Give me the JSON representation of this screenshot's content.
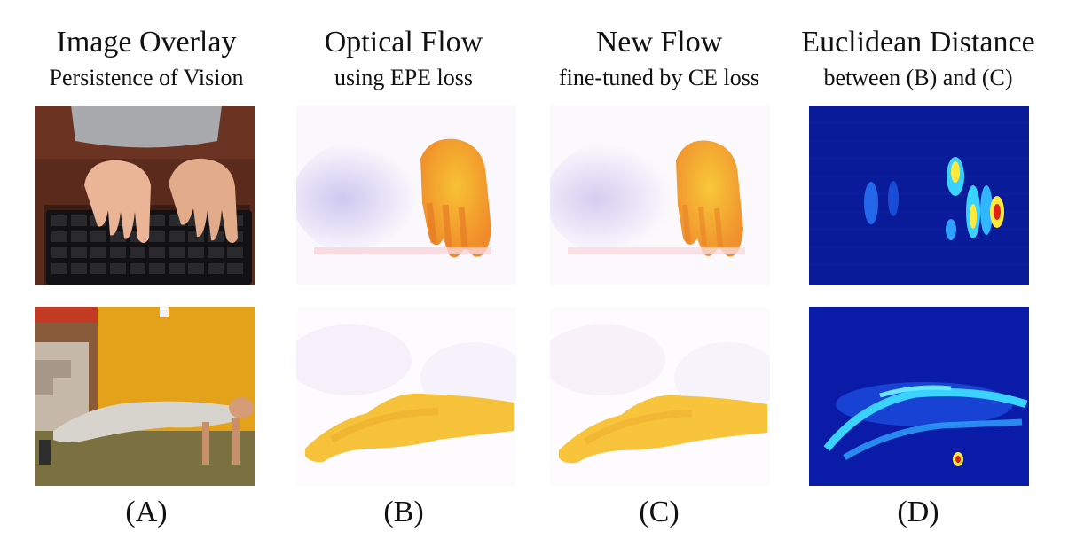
{
  "columns": [
    {
      "title": "Image Overlay",
      "subtitle": "Persistence of Vision",
      "label": "(A)"
    },
    {
      "title": "Optical Flow",
      "subtitle": "using EPE loss",
      "label": "(B)"
    },
    {
      "title": "New Flow",
      "subtitle": "fine-tuned by CE loss",
      "label": "(C)"
    },
    {
      "title": "Euclidean Distance",
      "subtitle": "between (B) and (C)",
      "label": "(D)"
    }
  ],
  "colors": {
    "flow_orange": "#f08a2a",
    "flow_yellow": "#f7c233",
    "flow_lavender": "#c9c2ee",
    "heat_blue": "#0a1fa8",
    "heat_cyan": "#3ad2ff",
    "heat_yellow": "#ffe93a",
    "heat_red": "#e0201a"
  }
}
